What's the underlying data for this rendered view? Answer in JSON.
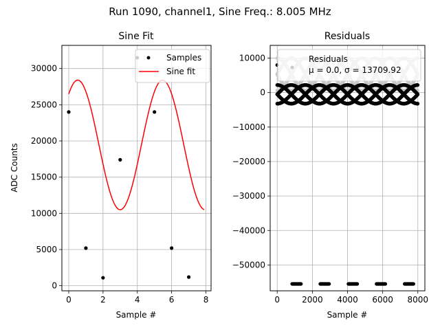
{
  "suptitle": "Run 1090, channel1, Sine Freq.: 8.005 MHz",
  "chart_data": [
    {
      "type": "scatter+line",
      "title": "Sine Fit",
      "xlabel": "Sample #",
      "ylabel": "ADC Counts",
      "xlim": [
        -0.4,
        8.3
      ],
      "ylim": [
        -700,
        33200
      ],
      "xticks": [
        0,
        2,
        4,
        6,
        8
      ],
      "yticks": [
        0,
        5000,
        10000,
        15000,
        20000,
        25000,
        30000
      ],
      "grid": true,
      "legend_position": "top-right",
      "series": [
        {
          "name": "Samples",
          "kind": "points",
          "color": "#000000",
          "x": [
            0,
            1,
            2,
            3,
            4,
            5,
            6,
            7
          ],
          "y": [
            24000,
            5200,
            1100,
            17400,
            31500,
            24000,
            5200,
            1200
          ]
        },
        {
          "name": "Sine fit",
          "kind": "curve",
          "color": "#ff0000",
          "model": {
            "offset": 19450,
            "amplitude": 8950,
            "period": 4.95,
            "phase_x": 3.0,
            "x_start": 0,
            "x_end": 7.9
          }
        }
      ]
    },
    {
      "type": "scatter",
      "title": "Residuals",
      "xlabel": "Sample #",
      "xlim": [
        -400,
        8400
      ],
      "ylim": [
        -57500,
        13700
      ],
      "xticks": [
        0,
        2000,
        4000,
        6000,
        8000
      ],
      "yticks": [
        -50000,
        -40000,
        -30000,
        -20000,
        -10000,
        0,
        10000
      ],
      "grid": true,
      "legend_position": "top-right",
      "legend_title": "Residuals",
      "legend_stats": "μ = 0.0, σ = 13709.92",
      "series": [
        {
          "name": "upper-arcs",
          "color": "#000000",
          "band": {
            "mid": -500,
            "amplitude": 2700,
            "period": 1600,
            "x_start": 0,
            "x_end": 8000
          }
        },
        {
          "name": "upper-arcs-gray",
          "color": "#c8c8c8",
          "band": {
            "mid": 5300,
            "amplitude": 4700,
            "period": 1600,
            "x_start": 0,
            "x_end": 8000
          }
        },
        {
          "name": "low-clusters",
          "color": "#000000",
          "clusters": [
            {
              "x_start": 850,
              "x_end": 1350,
              "y": -55500
            },
            {
              "x_start": 2450,
              "x_end": 2950,
              "y": -55500
            },
            {
              "x_start": 4050,
              "x_end": 4550,
              "y": -55500
            },
            {
              "x_start": 5650,
              "x_end": 6150,
              "y": -55500
            },
            {
              "x_start": 7250,
              "x_end": 7750,
              "y": -55500
            }
          ]
        },
        {
          "name": "top-points",
          "color": "#000000",
          "x": [
            0,
            850
          ],
          "y": [
            8000,
            7300
          ]
        }
      ]
    }
  ]
}
